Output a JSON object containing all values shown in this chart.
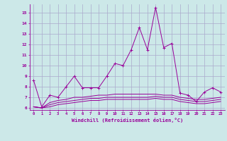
{
  "x": [
    0,
    1,
    2,
    3,
    4,
    5,
    6,
    7,
    8,
    9,
    10,
    11,
    12,
    13,
    14,
    15,
    16,
    17,
    18,
    19,
    20,
    21,
    22,
    23
  ],
  "line1": [
    8.6,
    6.1,
    7.2,
    7.0,
    8.0,
    9.0,
    7.9,
    7.9,
    7.9,
    9.0,
    10.2,
    10.0,
    11.5,
    13.6,
    11.5,
    15.5,
    11.7,
    12.1,
    7.4,
    7.2,
    6.6,
    7.5,
    7.9,
    7.5
  ],
  "line2": [
    6.1,
    6.0,
    6.5,
    6.7,
    6.8,
    7.0,
    7.0,
    7.1,
    7.2,
    7.2,
    7.3,
    7.3,
    7.3,
    7.3,
    7.3,
    7.3,
    7.2,
    7.2,
    7.0,
    6.9,
    6.8,
    6.8,
    6.9,
    7.0
  ],
  "line3": [
    6.1,
    6.0,
    6.3,
    6.5,
    6.6,
    6.7,
    6.8,
    6.9,
    6.9,
    7.0,
    7.0,
    7.0,
    7.0,
    7.0,
    7.0,
    7.1,
    7.0,
    7.0,
    6.8,
    6.7,
    6.6,
    6.6,
    6.7,
    6.8
  ],
  "line4": [
    6.1,
    6.0,
    6.1,
    6.3,
    6.4,
    6.5,
    6.6,
    6.7,
    6.7,
    6.8,
    6.8,
    6.8,
    6.8,
    6.8,
    6.8,
    6.9,
    6.8,
    6.8,
    6.6,
    6.5,
    6.4,
    6.4,
    6.5,
    6.6
  ],
  "line_color": "#990099",
  "bg_color": "#cce8e8",
  "grid_color": "#aaaacc",
  "xlabel": "Windchill (Refroidissement éolien,°C)",
  "ylim_min": 5.8,
  "ylim_max": 15.8,
  "xlim_min": -0.5,
  "xlim_max": 23.5,
  "yticks": [
    6,
    7,
    8,
    9,
    10,
    11,
    12,
    13,
    14,
    15
  ],
  "xticks": [
    0,
    1,
    2,
    3,
    4,
    5,
    6,
    7,
    8,
    9,
    10,
    11,
    12,
    13,
    14,
    15,
    16,
    17,
    18,
    19,
    20,
    21,
    22,
    23
  ]
}
